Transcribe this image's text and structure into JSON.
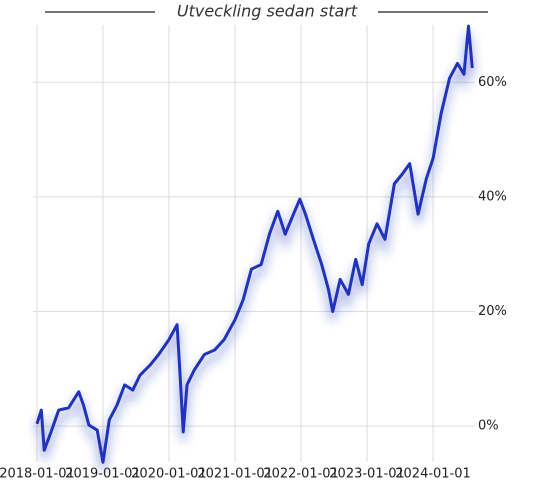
{
  "chart_data": {
    "type": "line",
    "title": "Utveckling sedan start",
    "x": [
      "2018-01-01",
      "2018-01-25",
      "2018-02-10",
      "2018-03-20",
      "2018-05-01",
      "2018-06-25",
      "2018-08-20",
      "2018-09-15",
      "2018-10-15",
      "2018-11-30",
      "2019-01-01",
      "2019-02-05",
      "2019-03-20",
      "2019-05-01",
      "2019-06-15",
      "2019-07-25",
      "2019-09-20",
      "2019-11-05",
      "2020-01-01",
      "2020-02-15",
      "2020-03-01",
      "2020-03-20",
      "2020-04-10",
      "2020-05-20",
      "2020-07-15",
      "2020-09-10",
      "2020-11-01",
      "2021-01-01",
      "2021-02-15",
      "2021-04-01",
      "2021-05-25",
      "2021-07-10",
      "2021-08-25",
      "2021-10-05",
      "2021-11-20",
      "2021-12-25",
      "2022-01-25",
      "2022-03-10",
      "2022-04-25",
      "2022-06-01",
      "2022-06-25",
      "2022-08-05",
      "2022-09-20",
      "2022-10-30",
      "2022-12-05",
      "2023-01-10",
      "2023-02-25",
      "2023-04-10",
      "2023-06-01",
      "2023-07-15",
      "2023-08-25",
      "2023-10-10",
      "2023-11-25",
      "2024-01-01",
      "2024-02-15",
      "2024-04-01",
      "2024-05-15",
      "2024-06-20",
      "2024-07-15",
      "2024-08-05"
    ],
    "series": [
      {
        "color": "#2233bb",
        "values": [
          0.4,
          2.8,
          -4.2,
          -1.0,
          2.8,
          3.2,
          6.0,
          3.7,
          0.2,
          -0.7,
          -6.3,
          1.1,
          3.7,
          7.2,
          6.3,
          8.9,
          10.7,
          12.5,
          15.1,
          17.7,
          9.8,
          -1.0,
          7.2,
          9.8,
          12.5,
          13.3,
          15.1,
          18.6,
          22.1,
          27.4,
          28.2,
          33.5,
          37.5,
          33.5,
          37.0,
          39.6,
          37.0,
          32.6,
          28.2,
          23.9,
          20.0,
          25.6,
          23.0,
          29.1,
          24.7,
          31.8,
          35.3,
          32.6,
          42.3,
          44.0,
          45.8,
          37.0,
          43.2,
          46.7,
          54.6,
          60.7,
          63.3,
          61.4,
          69.8,
          62.5
        ]
      }
    ],
    "xlim": [
      "2017-12-10",
      "2024-08-20"
    ],
    "xticks": [
      "2018-01-01",
      "2019-01-01",
      "2020-01-01",
      "2021-01-01",
      "2022-01-01",
      "2023-01-01",
      "2024-01-01"
    ],
    "ylim": [
      -8,
      70
    ],
    "yticks": [
      {
        "value": 0,
        "label": "0%"
      },
      {
        "value": 20,
        "label": "20%"
      },
      {
        "value": 40,
        "label": "40%"
      },
      {
        "value": 60,
        "label": "60%"
      }
    ],
    "grid": true
  }
}
